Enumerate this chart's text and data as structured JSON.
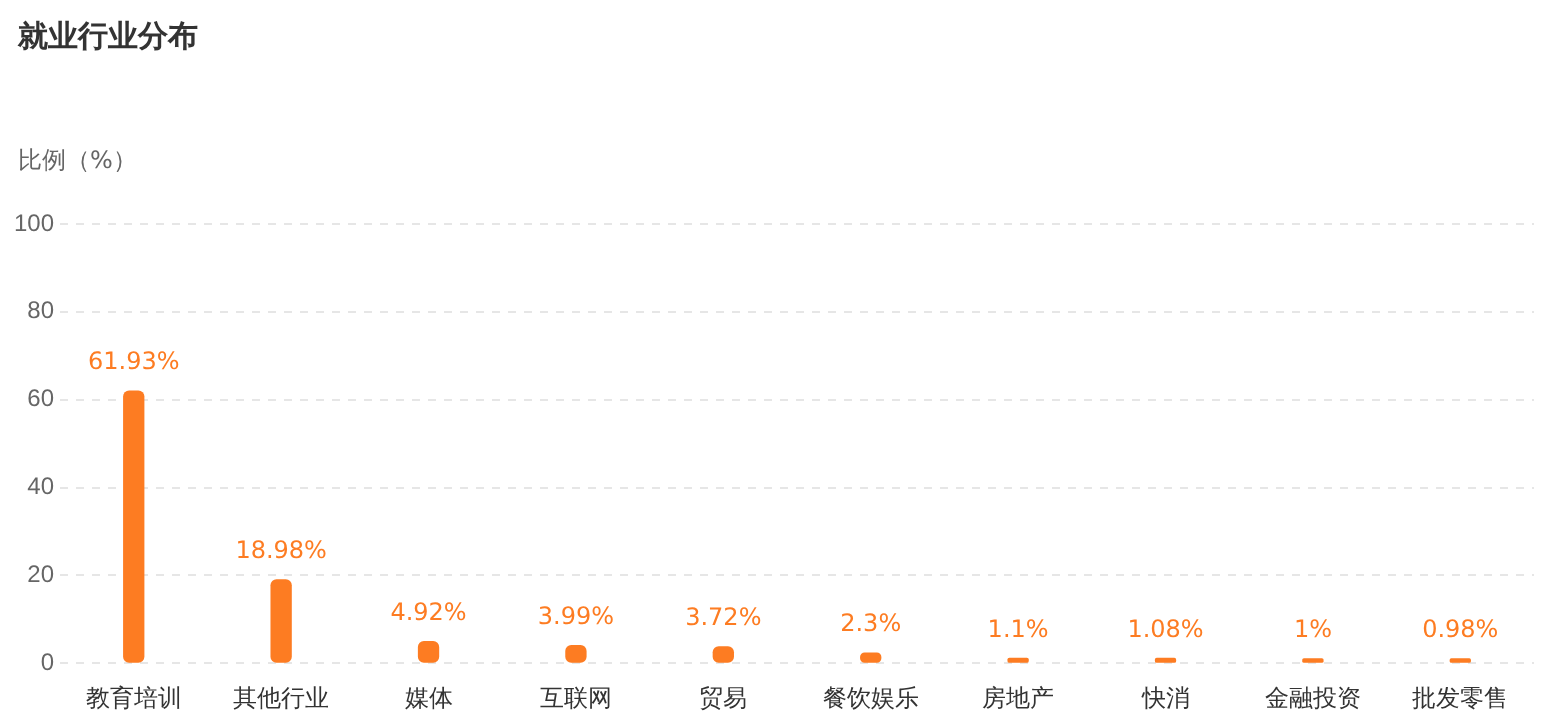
{
  "chart_data": {
    "type": "bar",
    "title": "就业行业分布",
    "ylabel": "比例（%）",
    "categories": [
      "教育培训",
      "其他行业",
      "媒体",
      "互联网",
      "贸易",
      "餐饮娱乐",
      "房地产",
      "快消",
      "金融投资",
      "批发零售"
    ],
    "values": [
      61.93,
      18.98,
      4.92,
      3.99,
      3.72,
      2.3,
      1.1,
      1.08,
      1,
      0.98
    ],
    "value_labels": [
      "61.93%",
      "18.98%",
      "4.92%",
      "3.99%",
      "3.72%",
      "2.3%",
      "1.1%",
      "1.08%",
      "1%",
      "0.98%"
    ],
    "color": "#fd7c22",
    "ylim": [
      0,
      100
    ],
    "yticks": [
      0,
      20,
      40,
      60,
      80,
      100
    ],
    "grid": "y"
  }
}
